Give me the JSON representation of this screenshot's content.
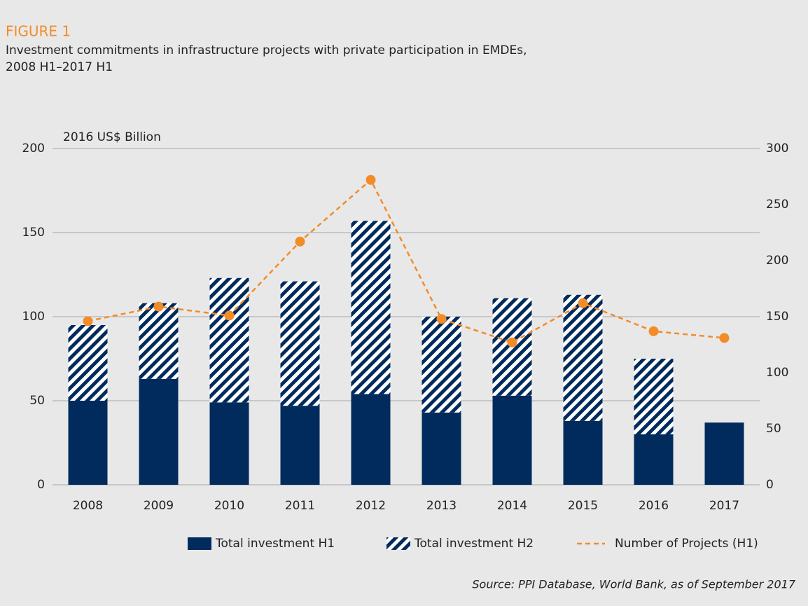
{
  "chart_data": {
    "type": "bar",
    "figure_label": "FIGURE 1",
    "title": [
      "Investment commitments in infrastructure projects with private participation in EMDEs,",
      "2008 H1–2017 H1"
    ],
    "y_axis_label": "2016 US$ Billion",
    "source": "Source: PPI Database, World Bank, as of September 2017",
    "categories": [
      "2008",
      "2009",
      "2010",
      "2011",
      "2012",
      "2013",
      "2014",
      "2015",
      "2016",
      "2017"
    ],
    "series": [
      {
        "name": "Total investment H1",
        "color": "#002b5c",
        "stack": true,
        "values": [
          50,
          63,
          49,
          47,
          54,
          43,
          53,
          38,
          30,
          37
        ]
      },
      {
        "name": "Total investment H2",
        "color": "#002b5c",
        "stack": true,
        "hatched": true,
        "values": [
          45,
          45,
          74,
          74,
          103,
          57,
          58,
          75,
          45,
          null
        ]
      },
      {
        "name": "Number of Projects (H1)",
        "color": "#f28c28",
        "type": "line",
        "dashed": true,
        "axis": "y2",
        "values": [
          146,
          159,
          151,
          217,
          272,
          148,
          127,
          162,
          137,
          131
        ]
      }
    ],
    "ylim": [
      0,
      200
    ],
    "yticks": [
      0,
      50,
      100,
      150,
      200
    ],
    "y2lim": [
      0,
      300
    ],
    "y2ticks": [
      0,
      50,
      100,
      150,
      200,
      250,
      300
    ],
    "grid": true
  }
}
